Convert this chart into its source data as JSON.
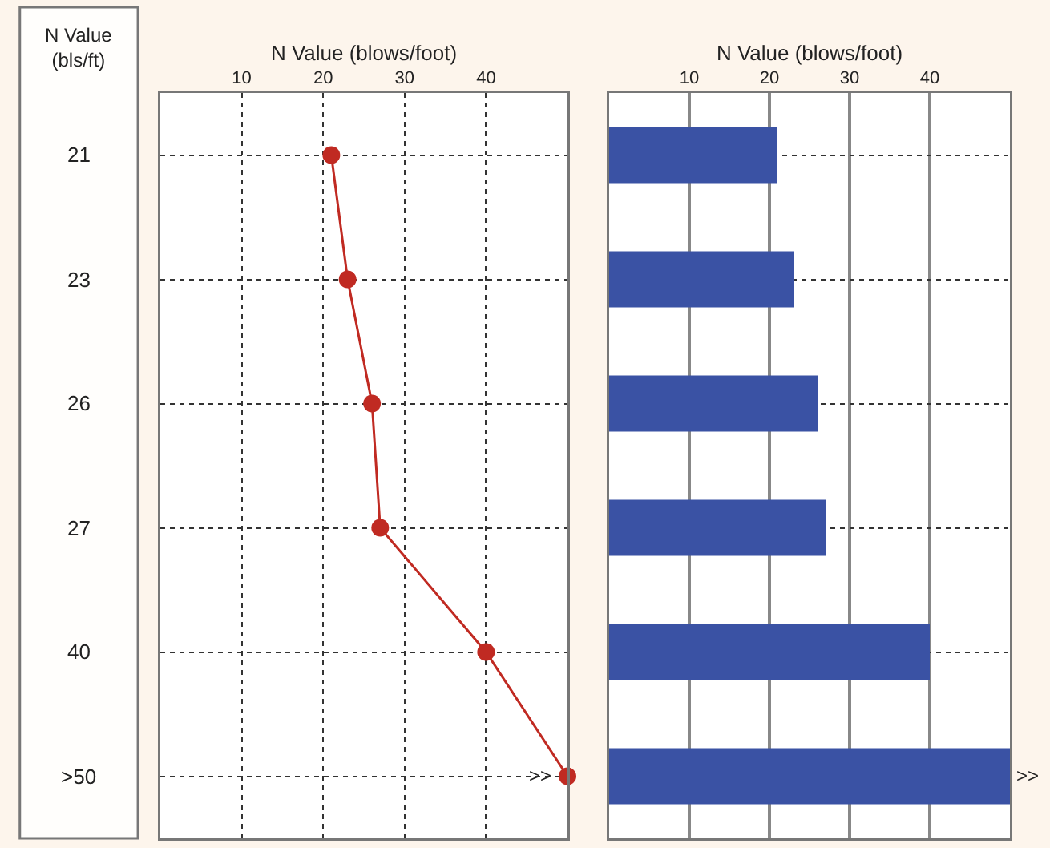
{
  "chart_data": [
    {
      "type": "line",
      "orientation": "horizontal",
      "xlabel": "N Value (blows/foot)",
      "ylabel": "N Value\n(bls/ft)",
      "categories": [
        "21",
        "23",
        "26",
        "27",
        "40",
        ">50"
      ],
      "series": [
        {
          "color": "#c02a22",
          "values": [
            21,
            23,
            26,
            27,
            40,
            50
          ]
        }
      ],
      "xlim": [
        0,
        50
      ],
      "xticks": [
        10,
        20,
        30,
        40
      ],
      "grid": true,
      "marker": "circle",
      "line_style": "solid",
      "annotations": [
        {
          "text": ">>",
          "x": 50,
          "y": ">50"
        }
      ]
    },
    {
      "type": "bar",
      "orientation": "horizontal",
      "xlabel": "N Value (blows/foot)",
      "categories": [
        "21",
        "23",
        "26",
        "27",
        "40",
        ">50"
      ],
      "series": [
        {
          "color": "#3a52a4",
          "values": [
            21,
            23,
            26,
            27,
            40,
            50
          ]
        }
      ],
      "xlim": [
        0,
        50
      ],
      "xticks": [
        10,
        20,
        30,
        40
      ],
      "grid": true,
      "tick_labels": "x",
      "annotations": [
        {
          "text": ">>",
          "x": 50,
          "y": ">50"
        }
      ]
    }
  ]
}
